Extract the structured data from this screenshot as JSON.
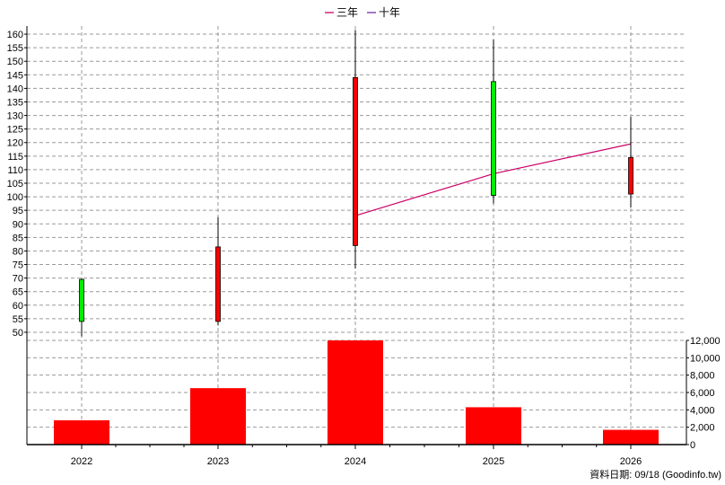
{
  "legend": {
    "items": [
      {
        "label": "三年",
        "color": "#cc0066"
      },
      {
        "label": "十年",
        "color": "#7030a0"
      }
    ]
  },
  "footer": {
    "source_text": "資料日期: 09/18  (Goodinfo.tw)"
  },
  "colors": {
    "candle_up": "#ff0000",
    "candle_down": "#00ee00",
    "volume_bar": "#ff0000",
    "grid": "#9a9a9a",
    "axis": "#000000"
  },
  "chart_data": [
    {
      "type": "candlestick",
      "title": "",
      "categories": [
        "2022",
        "2023",
        "2024",
        "2025",
        "2026"
      ],
      "ylim": [
        47,
        163
      ],
      "yticks": [
        50,
        55,
        60,
        65,
        70,
        75,
        80,
        85,
        90,
        95,
        100,
        105,
        110,
        115,
        120,
        125,
        130,
        135,
        140,
        145,
        150,
        155,
        160
      ],
      "grid": true,
      "legend_position": "top-center",
      "candles": [
        {
          "x": "2022",
          "open": 69.5,
          "high": 70,
          "low": 48.5,
          "close": 54
        },
        {
          "x": "2023",
          "open": 54,
          "high": 92.5,
          "low": 52.5,
          "close": 81.5
        },
        {
          "x": "2024",
          "open": 82,
          "high": 161.5,
          "low": 73.5,
          "close": 144
        },
        {
          "x": "2025",
          "open": 142.5,
          "high": 158,
          "low": 97.5,
          "close": 100.5
        },
        {
          "x": "2026",
          "open": 101,
          "high": 129.5,
          "low": 96,
          "close": 114.5
        }
      ],
      "series": [
        {
          "name": "三年",
          "x": [
            "2024",
            "2025",
            "2026"
          ],
          "values": [
            93,
            108.5,
            119.5
          ]
        },
        {
          "name": "十年",
          "x": [],
          "values": []
        }
      ]
    },
    {
      "type": "bar",
      "title": "",
      "categories": [
        "2022",
        "2023",
        "2024",
        "2025",
        "2026"
      ],
      "values": [
        2800,
        6500,
        12000,
        4300,
        1700
      ],
      "ylim": [
        0,
        12000
      ],
      "yticks": [
        0,
        2000,
        4000,
        6000,
        8000,
        10000,
        12000
      ],
      "ytick_labels": [
        "0",
        "2,000",
        "4,000",
        "6,000",
        "8,000",
        "10,000",
        "12,000"
      ],
      "grid": true
    }
  ]
}
